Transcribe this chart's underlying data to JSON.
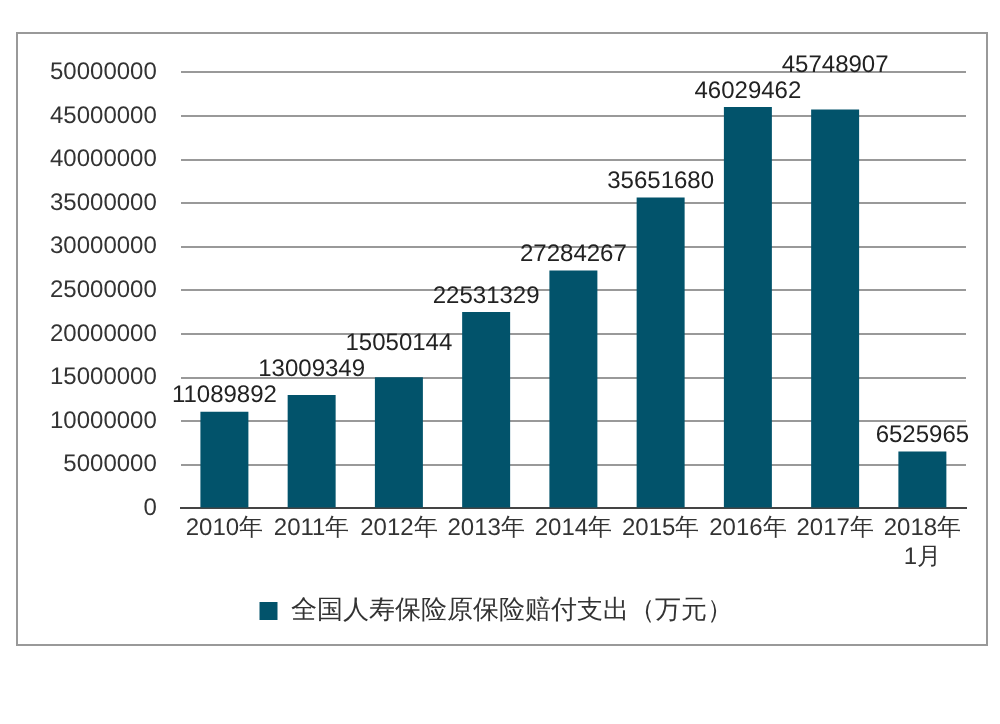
{
  "chart_data": {
    "type": "bar",
    "categories": [
      "2010年",
      "2011年",
      "2012年",
      "2013年",
      "2014年",
      "2015年",
      "2016年",
      "2017年",
      "2018年\n1月"
    ],
    "series": [
      {
        "name": "全国人寿保险原保险赔付支出（万元）",
        "color": "#02536b",
        "values": [
          11089892,
          13009349,
          15050144,
          22531329,
          27284267,
          35651680,
          46029462,
          45748907,
          6525965
        ]
      }
    ],
    "ylim": [
      0,
      50000000
    ],
    "yticks": [
      0,
      5000000,
      10000000,
      15000000,
      20000000,
      25000000,
      30000000,
      35000000,
      40000000,
      45000000,
      50000000
    ],
    "grid": "y",
    "legend": "bottom",
    "data_labels": true
  }
}
